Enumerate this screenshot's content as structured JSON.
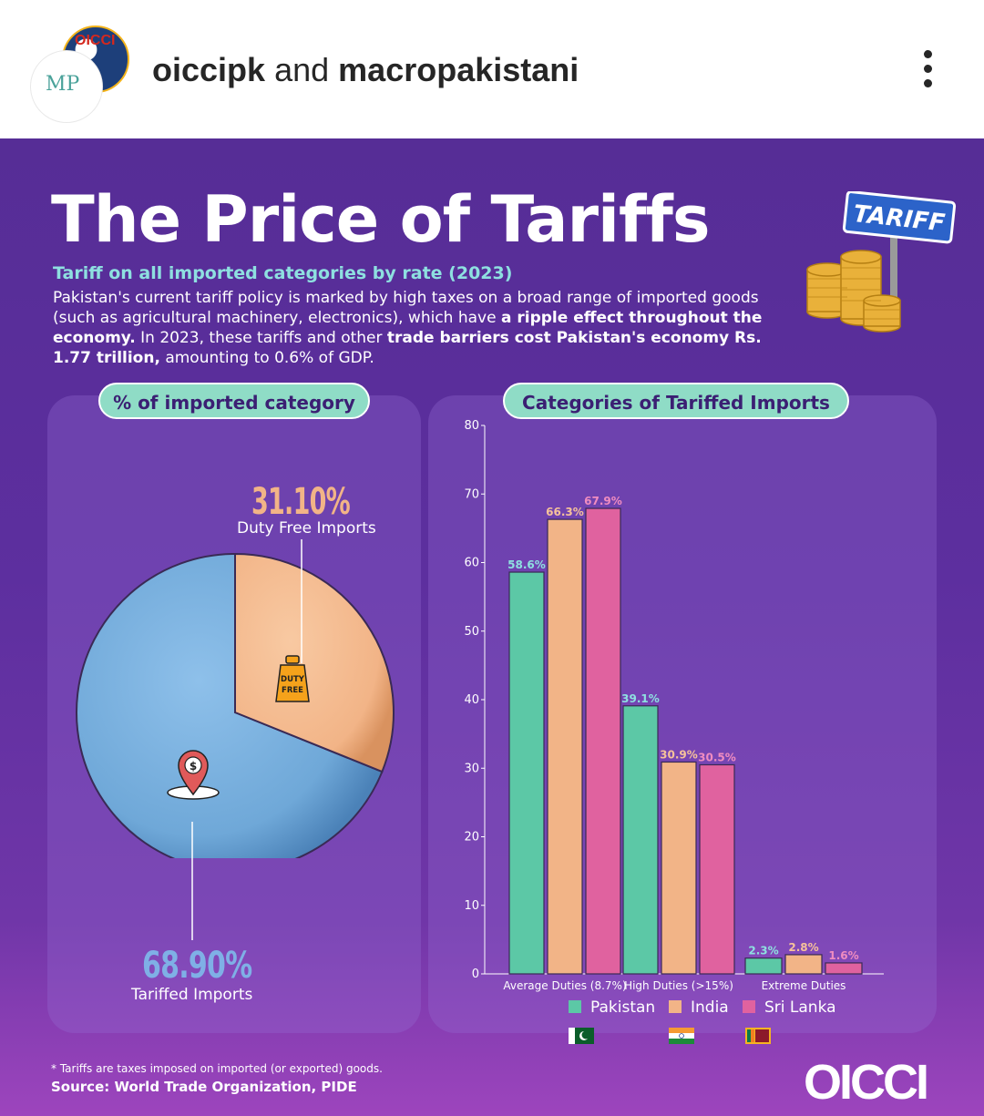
{
  "header": {
    "account_primary": "oiccipk",
    "joiner": "and",
    "account_secondary": "macropakistani",
    "avatar_back_text": "OICCI",
    "avatar_front_text": "MP"
  },
  "poster": {
    "title": "The Price of Tariffs",
    "subtitle": "Tariff on all imported categories by rate (2023)",
    "desc_1": "Pakistan's current tariff policy is marked by high taxes on a broad range of imported goods (such as agricultural machinery, electronics), which have ",
    "desc_bold_1": "a ripple effect throughout the economy.",
    "desc_2": " In 2023, these tariffs and other ",
    "desc_bold_2": "trade barriers cost Pakistan's economy Rs. 1.77 trillion,",
    "desc_3": " amounting to 0.6% of GDP.",
    "sign_text": "TARIFF",
    "bag_text_1": "DUTY",
    "bag_text_2": "FREE",
    "footnote": "* Tariffs are taxes imposed on imported (or exported) goods.",
    "source": "Source: World Trade Organization, PIDE",
    "logo": "OICCI"
  },
  "colors": {
    "pakistan": "#5cc8a6",
    "india": "#f2b487",
    "srilanka": "#e0629f",
    "pie_tariffed": "#6fa8d8",
    "pie_duty_free": "#f2b487"
  },
  "chart_data": [
    {
      "type": "pie",
      "title": "% of imported category",
      "slices": [
        {
          "label": "Duty Free Imports",
          "value": 31.1,
          "display": "31.10%"
        },
        {
          "label": "Tariffed Imports",
          "value": 68.9,
          "display": "68.90%"
        }
      ]
    },
    {
      "type": "bar",
      "title": "Categories of Tariffed Imports",
      "categories": [
        "Average Duties (8.7%)",
        "High Duties (>15%)",
        "Extreme Duties"
      ],
      "series": [
        {
          "name": "Pakistan",
          "values": [
            58.6,
            39.1,
            2.3
          ],
          "labels": [
            "58.6%",
            "39.1%",
            "2.3%"
          ]
        },
        {
          "name": "India",
          "values": [
            66.3,
            30.9,
            2.8
          ],
          "labels": [
            "66.3%",
            "30.9%",
            "2.8%"
          ]
        },
        {
          "name": "Sri Lanka",
          "values": [
            67.9,
            30.5,
            1.6
          ],
          "labels": [
            "67.9%",
            "30.5%",
            "1.6%"
          ]
        }
      ],
      "ylim": [
        0,
        80
      ],
      "yticks": [
        0,
        10,
        20,
        30,
        40,
        50,
        60,
        70,
        80
      ],
      "legend": "bottom"
    }
  ]
}
